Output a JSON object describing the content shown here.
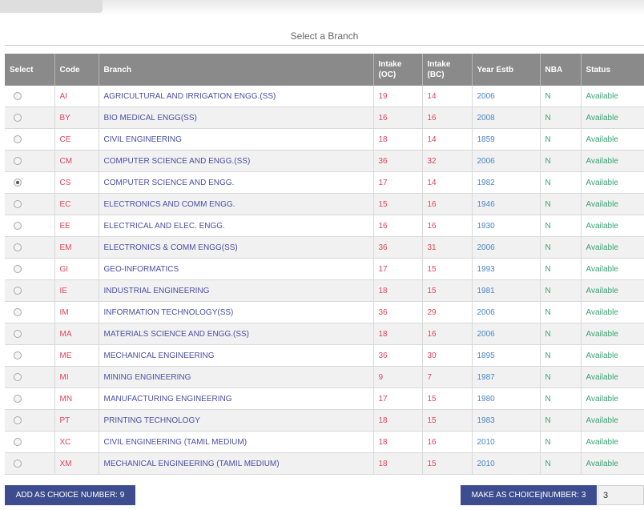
{
  "page": {
    "title": "Select a Branch"
  },
  "table": {
    "headers": {
      "select": "Select",
      "code": "Code",
      "branch": "Branch",
      "intake_oc_1": "Intake",
      "intake_oc_2": "(OC)",
      "intake_bc_1": "Intake",
      "intake_bc_2": "(BC)",
      "year": "Year Estb",
      "nba": "NBA",
      "status": "Status"
    },
    "rows": [
      {
        "selected": false,
        "code": "AI",
        "branch": "AGRICULTURAL AND IRRIGATION ENGG.(SS)",
        "intake_oc": "19",
        "intake_bc": "14",
        "year": "2006",
        "nba": "N",
        "status": "Available"
      },
      {
        "selected": false,
        "code": "BY",
        "branch": "BIO MEDICAL ENGG(SS)",
        "intake_oc": "16",
        "intake_bc": "16",
        "year": "2008",
        "nba": "N",
        "status": "Available"
      },
      {
        "selected": false,
        "code": "CE",
        "branch": "CIVIL ENGINEERING",
        "intake_oc": "18",
        "intake_bc": "14",
        "year": "1859",
        "nba": "N",
        "status": "Available"
      },
      {
        "selected": false,
        "code": "CM",
        "branch": "COMPUTER SCIENCE AND ENGG.(SS)",
        "intake_oc": "36",
        "intake_bc": "32",
        "year": "2006",
        "nba": "N",
        "status": "Available"
      },
      {
        "selected": true,
        "code": "CS",
        "branch": "COMPUTER SCIENCE AND ENGG.",
        "intake_oc": "17",
        "intake_bc": "14",
        "year": "1982",
        "nba": "N",
        "status": "Available"
      },
      {
        "selected": false,
        "code": "EC",
        "branch": "ELECTRONICS AND COMM ENGG.",
        "intake_oc": "15",
        "intake_bc": "16",
        "year": "1946",
        "nba": "N",
        "status": "Available"
      },
      {
        "selected": false,
        "code": "EE",
        "branch": "ELECTRICAL AND ELEC. ENGG.",
        "intake_oc": "16",
        "intake_bc": "16",
        "year": "1930",
        "nba": "N",
        "status": "Available"
      },
      {
        "selected": false,
        "code": "EM",
        "branch": "ELECTRONICS & COMM ENGG(SS)",
        "intake_oc": "36",
        "intake_bc": "31",
        "year": "2006",
        "nba": "N",
        "status": "Available"
      },
      {
        "selected": false,
        "code": "GI",
        "branch": "GEO-INFORMATICS",
        "intake_oc": "17",
        "intake_bc": "15",
        "year": "1993",
        "nba": "N",
        "status": "Available"
      },
      {
        "selected": false,
        "code": "IE",
        "branch": "INDUSTRIAL ENGINEERING",
        "intake_oc": "18",
        "intake_bc": "15",
        "year": "1981",
        "nba": "N",
        "status": "Available"
      },
      {
        "selected": false,
        "code": "IM",
        "branch": "INFORMATION TECHNOLOGY(SS)",
        "intake_oc": "36",
        "intake_bc": "29",
        "year": "2006",
        "nba": "N",
        "status": "Available"
      },
      {
        "selected": false,
        "code": "MA",
        "branch": "MATERIALS SCIENCE AND ENGG.(SS)",
        "intake_oc": "18",
        "intake_bc": "16",
        "year": "2006",
        "nba": "N",
        "status": "Available"
      },
      {
        "selected": false,
        "code": "ME",
        "branch": "MECHANICAL ENGINEERING",
        "intake_oc": "36",
        "intake_bc": "30",
        "year": "1895",
        "nba": "N",
        "status": "Available"
      },
      {
        "selected": false,
        "code": "MI",
        "branch": "MINING ENGINEERING",
        "intake_oc": "9",
        "intake_bc": "7",
        "year": "1987",
        "nba": "N",
        "status": "Available"
      },
      {
        "selected": false,
        "code": "MN",
        "branch": "MANUFACTURING ENGINEERING",
        "intake_oc": "17",
        "intake_bc": "15",
        "year": "1980",
        "nba": "N",
        "status": "Available"
      },
      {
        "selected": false,
        "code": "PT",
        "branch": "PRINTING TECHNOLOGY",
        "intake_oc": "18",
        "intake_bc": "15",
        "year": "1983",
        "nba": "N",
        "status": "Available"
      },
      {
        "selected": false,
        "code": "XC",
        "branch": "CIVIL ENGINEERING (TAMIL MEDIUM)",
        "intake_oc": "18",
        "intake_bc": "16",
        "year": "2010",
        "nba": "N",
        "status": "Available"
      },
      {
        "selected": false,
        "code": "XM",
        "branch": "MECHANICAL ENGINEERING (TAMIL MEDIUM)",
        "intake_oc": "18",
        "intake_bc": "15",
        "year": "2010",
        "nba": "N",
        "status": "Available"
      }
    ]
  },
  "actions": {
    "add_choice_label": "ADD AS CHOICE NUMBER: 9",
    "make_choice_label": "MAKE AS CHOICE NUMBER: 3",
    "choice_number_value": "3"
  },
  "icons": {
    "radio_selected": "radio-selected-icon",
    "radio_unselected": "radio-unselected-icon",
    "cursor": "i-beam-cursor-icon"
  },
  "colors": {
    "header_bg": "#8a8a8a",
    "code": "#e0445a",
    "branch": "#4a4fa3",
    "year": "#4a86c8",
    "status": "#3aa273",
    "button_bg": "#3c4c8e"
  }
}
